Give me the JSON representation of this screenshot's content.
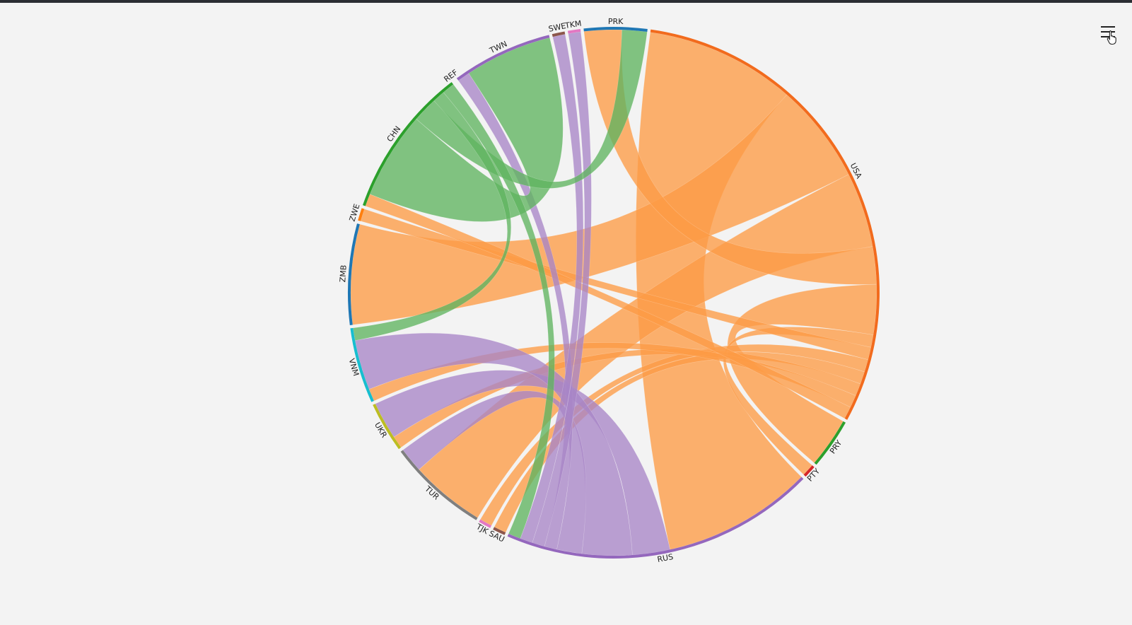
{
  "menu": {
    "icon": "hamburger-menu-icon"
  },
  "chart_data": {
    "type": "chord",
    "title": "",
    "groups": [
      {
        "id": "USA",
        "label": "USA",
        "color": "#f26b1d"
      },
      {
        "id": "PRY",
        "label": "PRY",
        "color": "#2ca02c"
      },
      {
        "id": "PTY",
        "label": "PTY",
        "color": "#d62728"
      },
      {
        "id": "RUS",
        "label": "RUS",
        "color": "#9467bd"
      },
      {
        "id": "SAU",
        "label": "SAU",
        "color": "#8c564b"
      },
      {
        "id": "TJK",
        "label": "TJK",
        "color": "#e377c2"
      },
      {
        "id": "TUR",
        "label": "TUR",
        "color": "#7f7f7f"
      },
      {
        "id": "UKR",
        "label": "UKR",
        "color": "#bcbd22"
      },
      {
        "id": "VNM",
        "label": "VNM",
        "color": "#17becf"
      },
      {
        "id": "ZMB",
        "label": "ZMB",
        "color": "#1f77b4"
      },
      {
        "id": "ZWE",
        "label": "ZWE",
        "color": "#ff7f0e"
      },
      {
        "id": "CHN",
        "label": "CHN",
        "color": "#2ca02c"
      },
      {
        "id": "REF",
        "label": "REF",
        "color": "#d62728"
      },
      {
        "id": "TWN",
        "label": "TWN",
        "color": "#9467bd"
      },
      {
        "id": "SWE",
        "label": "SWE",
        "color": "#8c564b"
      },
      {
        "id": "TKM",
        "label": "TKM",
        "color": "#e377c2"
      },
      {
        "id": "PRK",
        "label": "PRK",
        "color": "#1f77b4"
      }
    ],
    "ribbon_colors": {
      "USA": "#fd9b45",
      "CHN": "#5fb35f",
      "RUS": "#a885c7"
    },
    "links": [
      {
        "source": "USA",
        "target": "RUS",
        "value": 12
      },
      {
        "source": "USA",
        "target": "ZMB",
        "value": 8
      },
      {
        "source": "USA",
        "target": "TUR",
        "value": 6
      },
      {
        "source": "USA",
        "target": "PRK",
        "value": 3
      },
      {
        "source": "USA",
        "target": "PRY",
        "value": 4
      },
      {
        "source": "USA",
        "target": "PTY",
        "value": 1
      },
      {
        "source": "USA",
        "target": "ZWE",
        "value": 1
      },
      {
        "source": "USA",
        "target": "TJK",
        "value": 1
      },
      {
        "source": "USA",
        "target": "SAU",
        "value": 1
      },
      {
        "source": "USA",
        "target": "UKR",
        "value": 1
      },
      {
        "source": "USA",
        "target": "VNM",
        "value": 1
      },
      {
        "source": "USA",
        "target": "CHN",
        "value": 1
      },
      {
        "source": "RUS",
        "target": "UKR",
        "value": 3
      },
      {
        "source": "RUS",
        "target": "VNM",
        "value": 4
      },
      {
        "source": "RUS",
        "target": "TUR",
        "value": 2
      },
      {
        "source": "RUS",
        "target": "TWN",
        "value": 1
      },
      {
        "source": "RUS",
        "target": "TKM",
        "value": 1
      },
      {
        "source": "RUS",
        "target": "SWE",
        "value": 1
      },
      {
        "source": "CHN",
        "target": "TWN",
        "value": 7
      },
      {
        "source": "CHN",
        "target": "PRK",
        "value": 2
      },
      {
        "source": "CHN",
        "target": "VNM",
        "value": 1
      },
      {
        "source": "CHN",
        "target": "RUS",
        "value": 1
      }
    ]
  }
}
